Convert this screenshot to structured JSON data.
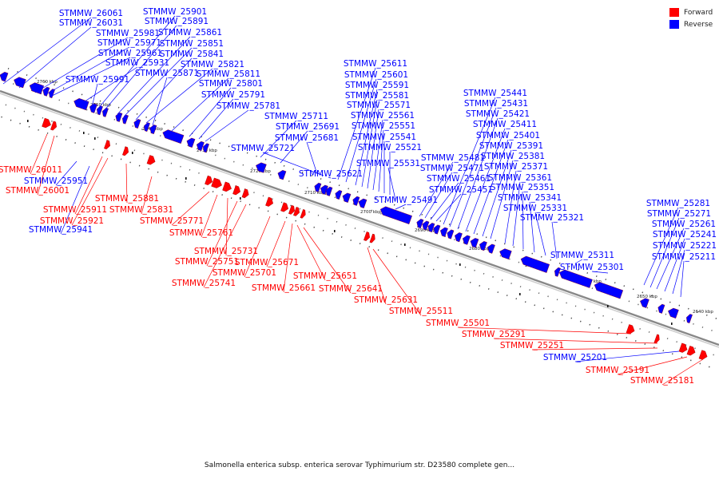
{
  "colors": {
    "forward": "#ff0000",
    "reverse": "#0000ff",
    "backbone": "#aaaaaa"
  },
  "legend": [
    {
      "label": "Forward",
      "color": "#ff0000"
    },
    {
      "label": "Reverse",
      "color": "#0000ff"
    }
  ],
  "caption": "Salmonella enterica subsp. enterica serovar Typhimurium str. D23580 complete gen...",
  "chart_data": {
    "type": "genome-map",
    "axis_unit": "kbp",
    "ticks": [
      "2760 kbp",
      "2750 kbp",
      "2740 kbp",
      "2730 kbp",
      "2720 kbp",
      "2710 kbp",
      "2700 kbp",
      "2690 kbp",
      "2680 kbp",
      "2670 kbp",
      "2660 kbp",
      "2650 kbp",
      "2640 kbp"
    ],
    "reverse_genes": [
      "STMMW_26061",
      "STMMW_26031",
      "STMMW_25981",
      "STMMW_25971",
      "STMMW_25961",
      "STMMW_25931",
      "STMMW_25991",
      "STMMW_25901",
      "STMMW_25891",
      "STMMW_25861",
      "STMMW_25851",
      "STMMW_25841",
      "STMMW_25821",
      "STMMW_25871",
      "STMMW_25811",
      "STMMW_25801",
      "STMMW_25791",
      "STMMW_25781",
      "STMMW_25711",
      "STMMW_25691",
      "STMMW_25681",
      "STMMW_25721",
      "STMMW_25621",
      "STMMW_25611",
      "STMMW_25601",
      "STMMW_25591",
      "STMMW_25581",
      "STMMW_25571",
      "STMMW_25561",
      "STMMW_25551",
      "STMMW_25541",
      "STMMW_25521",
      "STMMW_25531",
      "STMMW_25491",
      "STMMW_25481",
      "STMMW_25471",
      "STMMW_25461",
      "STMMW_25451",
      "STMMW_25441",
      "STMMW_25431",
      "STMMW_25421",
      "STMMW_25411",
      "STMMW_25401",
      "STMMW_25391",
      "STMMW_25381",
      "STMMW_25371",
      "STMMW_25361",
      "STMMW_25351",
      "STMMW_25341",
      "STMMW_25331",
      "STMMW_25321",
      "STMMW_25311",
      "STMMW_25301",
      "STMMW_25281",
      "STMMW_25271",
      "STMMW_25261",
      "STMMW_25241",
      "STMMW_25221",
      "STMMW_25211",
      "STMMW_25951",
      "STMMW_25941",
      "STMMW_25201"
    ],
    "forward_genes": [
      "STMMW_26011",
      "STMMW_26001",
      "STMMW_25911",
      "STMMW_25921",
      "STMMW_25881",
      "STMMW_25831",
      "STMMW_25771",
      "STMMW_25761",
      "STMMW_25731",
      "STMMW_25751",
      "STMMW_25741",
      "STMMW_25701",
      "STMMW_25671",
      "STMMW_25661",
      "STMMW_25651",
      "STMMW_25641",
      "STMMW_25631",
      "STMMW_25511",
      "STMMW_25501",
      "STMMW_25291",
      "STMMW_25251",
      "STMMW_25191",
      "STMMW_25181"
    ]
  }
}
